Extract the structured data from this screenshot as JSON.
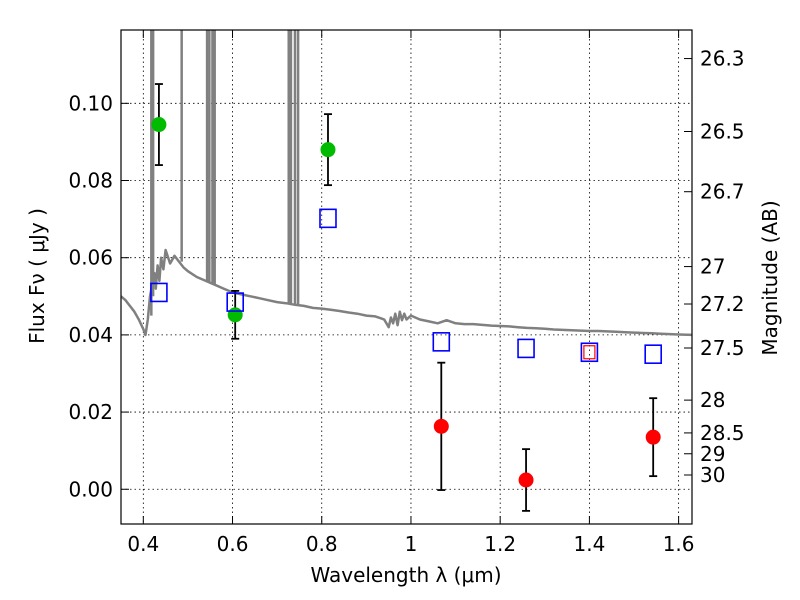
{
  "chart_data": {
    "type": "scatter",
    "xlabel": "Wavelength  λ (μm)",
    "ylabel": "Flux  Fν  ( μJy )",
    "ylabel_right": "Magnitude (AB)",
    "xlim": [
      0.35,
      1.63
    ],
    "ylim": [
      -0.009,
      0.119
    ],
    "grid": true,
    "x_ticks": [
      {
        "value": 0.4,
        "label": "0.4"
      },
      {
        "value": 0.6,
        "label": "0.6"
      },
      {
        "value": 0.8,
        "label": "0.8"
      },
      {
        "value": 1.0,
        "label": "1"
      },
      {
        "value": 1.2,
        "label": "1.2"
      },
      {
        "value": 1.4,
        "label": "1.4"
      },
      {
        "value": 1.6,
        "label": "1.6"
      }
    ],
    "y_ticks": [
      {
        "value": 0.0,
        "label": "0.00"
      },
      {
        "value": 0.02,
        "label": "0.02"
      },
      {
        "value": 0.04,
        "label": "0.04"
      },
      {
        "value": 0.06,
        "label": "0.06"
      },
      {
        "value": 0.08,
        "label": "0.08"
      },
      {
        "value": 0.1,
        "label": "0.10"
      }
    ],
    "mag_ticks": [
      {
        "flux": 0.1116,
        "label": "26.3"
      },
      {
        "flux": 0.0927,
        "label": "26.5"
      },
      {
        "flux": 0.0771,
        "label": "26.7"
      },
      {
        "flux": 0.0577,
        "label": "27"
      },
      {
        "flux": 0.048,
        "label": "27.2"
      },
      {
        "flux": 0.0366,
        "label": "27.5"
      },
      {
        "flux": 0.0231,
        "label": "28"
      },
      {
        "flux": 0.0146,
        "label": "28.5"
      },
      {
        "flux": 0.0092,
        "label": "29"
      },
      {
        "flux": 0.0037,
        "label": "30"
      }
    ],
    "series": [
      {
        "marker": "circle",
        "color": "#00bb00",
        "points": [
          {
            "x": 0.435,
            "y": 0.0945,
            "err": 0.0105
          },
          {
            "x": 0.606,
            "y": 0.0452,
            "err": 0.0062
          },
          {
            "x": 0.814,
            "y": 0.088,
            "err": 0.0092
          }
        ]
      },
      {
        "marker": "circle",
        "color": "#ff0000",
        "points": [
          {
            "x": 1.068,
            "y": 0.0163,
            "err": 0.0165
          },
          {
            "x": 1.258,
            "y": 0.0024,
            "err": 0.008
          },
          {
            "x": 1.543,
            "y": 0.0135,
            "err": 0.0101
          }
        ]
      },
      {
        "marker": "open-square",
        "color": "#0000ff",
        "points": [
          {
            "x": 0.435,
            "y": 0.051
          },
          {
            "x": 0.606,
            "y": 0.0485
          },
          {
            "x": 0.814,
            "y": 0.0702
          },
          {
            "x": 1.068,
            "y": 0.0382
          },
          {
            "x": 1.258,
            "y": 0.0365
          },
          {
            "x": 1.4,
            "y": 0.0355
          },
          {
            "x": 1.543,
            "y": 0.035
          }
        ]
      },
      {
        "marker": "open-square-small",
        "color": "#ff0000",
        "points": [
          {
            "x": 1.4,
            "y": 0.0355
          }
        ]
      },
      {
        "type": "line",
        "color": "#808080",
        "points": [
          [
            0.35,
            0.05
          ],
          [
            0.36,
            0.049
          ],
          [
            0.37,
            0.0475
          ],
          [
            0.38,
            0.046
          ],
          [
            0.39,
            0.044
          ],
          [
            0.4,
            0.0415
          ],
          [
            0.405,
            0.04
          ],
          [
            0.41,
            0.044
          ],
          [
            0.415,
            0.05
          ],
          [
            0.42,
            0.053
          ],
          [
            0.425,
            0.056
          ],
          [
            0.428,
            0.052
          ],
          [
            0.432,
            0.058
          ],
          [
            0.436,
            0.054
          ],
          [
            0.44,
            0.06
          ],
          [
            0.445,
            0.057
          ],
          [
            0.45,
            0.062
          ],
          [
            0.46,
            0.0585
          ],
          [
            0.47,
            0.0605
          ],
          [
            0.48,
            0.059
          ],
          [
            0.49,
            0.0575
          ],
          [
            0.5,
            0.0565
          ],
          [
            0.52,
            0.055
          ],
          [
            0.54,
            0.054
          ],
          [
            0.56,
            0.053
          ],
          [
            0.58,
            0.052
          ],
          [
            0.6,
            0.051
          ],
          [
            0.62,
            0.0505
          ],
          [
            0.64,
            0.05
          ],
          [
            0.66,
            0.0495
          ],
          [
            0.68,
            0.049
          ],
          [
            0.7,
            0.0485
          ],
          [
            0.72,
            0.0482
          ],
          [
            0.74,
            0.0478
          ],
          [
            0.76,
            0.0475
          ],
          [
            0.78,
            0.047
          ],
          [
            0.8,
            0.0468
          ],
          [
            0.82,
            0.0465
          ],
          [
            0.84,
            0.0462
          ],
          [
            0.86,
            0.0458
          ],
          [
            0.88,
            0.0455
          ],
          [
            0.9,
            0.045
          ],
          [
            0.92,
            0.0448
          ],
          [
            0.94,
            0.044
          ],
          [
            0.95,
            0.042
          ],
          [
            0.955,
            0.0445
          ],
          [
            0.96,
            0.043
          ],
          [
            0.965,
            0.0455
          ],
          [
            0.97,
            0.0425
          ],
          [
            0.975,
            0.046
          ],
          [
            0.98,
            0.0438
          ],
          [
            0.985,
            0.0455
          ],
          [
            0.99,
            0.044
          ],
          [
            1.0,
            0.045
          ],
          [
            1.02,
            0.044
          ],
          [
            1.04,
            0.0435
          ],
          [
            1.06,
            0.043
          ],
          [
            1.08,
            0.0438
          ],
          [
            1.1,
            0.043
          ],
          [
            1.12,
            0.0428
          ],
          [
            1.14,
            0.0428
          ],
          [
            1.16,
            0.0426
          ],
          [
            1.18,
            0.0424
          ],
          [
            1.2,
            0.0423
          ],
          [
            1.22,
            0.0422
          ],
          [
            1.24,
            0.042
          ],
          [
            1.26,
            0.0418
          ],
          [
            1.28,
            0.0417
          ],
          [
            1.3,
            0.0416
          ],
          [
            1.32,
            0.0414
          ],
          [
            1.34,
            0.0413
          ],
          [
            1.36,
            0.0412
          ],
          [
            1.38,
            0.0411
          ],
          [
            1.4,
            0.041
          ],
          [
            1.42,
            0.041
          ],
          [
            1.44,
            0.0409
          ],
          [
            1.46,
            0.0408
          ],
          [
            1.48,
            0.0407
          ],
          [
            1.5,
            0.0406
          ],
          [
            1.52,
            0.0405
          ],
          [
            1.54,
            0.0404
          ],
          [
            1.56,
            0.0403
          ],
          [
            1.58,
            0.0402
          ],
          [
            1.6,
            0.0401
          ],
          [
            1.63,
            0.04
          ]
        ],
        "emission_lines": [
          {
            "x": 0.418,
            "ymin": 0.045
          },
          {
            "x": 0.422,
            "ymin": 0.05
          },
          {
            "x": 0.486,
            "ymin": 0.059
          },
          {
            "x": 0.543,
            "ymin": 0.054
          },
          {
            "x": 0.548,
            "ymin": 0.0538
          },
          {
            "x": 0.555,
            "ymin": 0.0535
          },
          {
            "x": 0.56,
            "ymin": 0.0532
          },
          {
            "x": 0.726,
            "ymin": 0.0482
          },
          {
            "x": 0.731,
            "ymin": 0.0481
          },
          {
            "x": 0.74,
            "ymin": 0.0478
          },
          {
            "x": 0.747,
            "ymin": 0.0477
          }
        ]
      }
    ]
  }
}
